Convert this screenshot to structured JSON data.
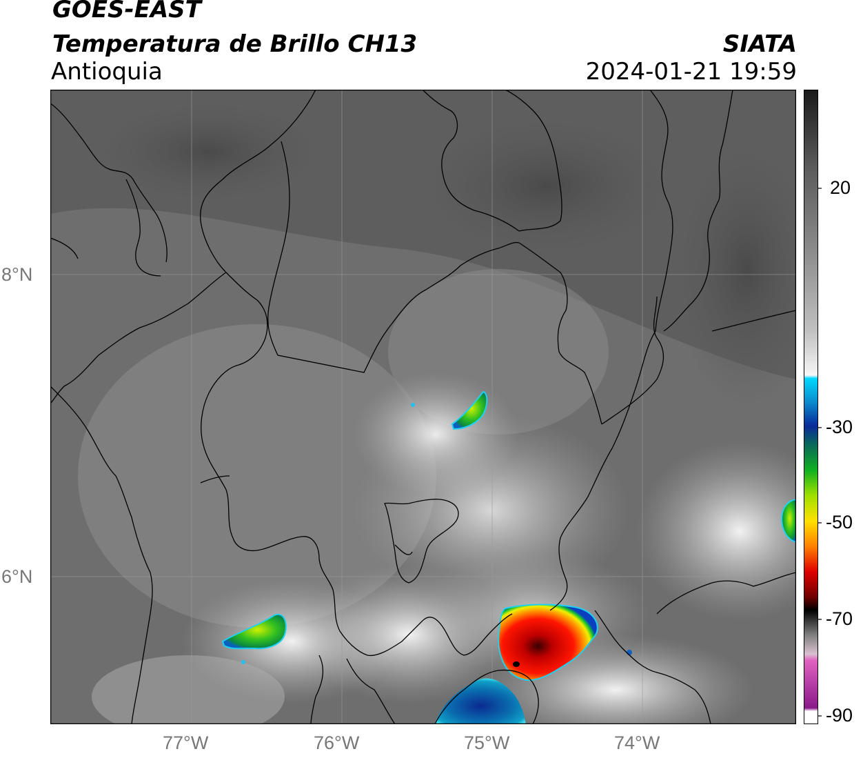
{
  "header": {
    "satellite": "GOES-EAST",
    "product": "Temperatura de Brillo CH13",
    "region": "Antioquia",
    "agency": "SIATA",
    "datetime": "2024-01-21 19:59"
  },
  "map": {
    "lon_labels": [
      "77°W",
      "76°W",
      "75°W",
      "74°W"
    ],
    "lat_labels": [
      "8°N",
      "6°N"
    ]
  },
  "colorbar": {
    "tick_labels": [
      "20",
      "-30",
      "-50",
      "-70",
      "-90"
    ],
    "colors": {
      "warm_gray_top": "#1a1a1a",
      "cyan": "#00d8ff",
      "blue": "#0a2a9a",
      "green": "#10b020",
      "yellow": "#ffe000",
      "red": "#e00000",
      "black": "#000000",
      "pink": "#e060c0",
      "purple": "#8a1a8a"
    }
  }
}
